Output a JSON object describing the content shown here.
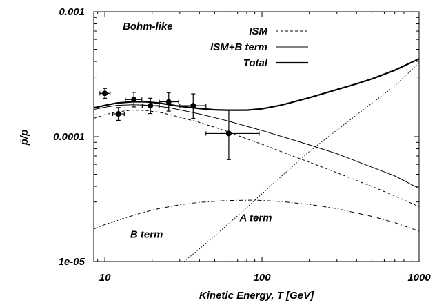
{
  "chart_data": {
    "type": "line",
    "xlabel": "Kinetic Energy, T [GeV]",
    "ylabel": "p̄/p",
    "xscale": "log",
    "yscale": "log",
    "xlim": [
      8.5,
      1000
    ],
    "ylim": [
      1e-05,
      0.001
    ],
    "x_ticks": [
      {
        "value": 10,
        "label": "10"
      },
      {
        "value": 100,
        "label": "100"
      },
      {
        "value": 1000,
        "label": "1000"
      }
    ],
    "y_ticks": [
      {
        "value": 1e-05,
        "label": "1e-05"
      },
      {
        "value": 0.0001,
        "label": "0.0001"
      },
      {
        "value": 0.001,
        "label": "0.001"
      }
    ],
    "grid": false,
    "legend_position": "top-right",
    "annotations": [
      {
        "text": "Bohm-like",
        "x": 13,
        "y": 0.00072
      },
      {
        "text": "B term",
        "x": 14.5,
        "y": 1.55e-05
      },
      {
        "text": "A term",
        "x": 72,
        "y": 2.1e-05
      }
    ],
    "series": [
      {
        "name": "ISM",
        "style": "dashed",
        "color": "#000000",
        "legend": true,
        "points": [
          [
            8.5,
            0.00014
          ],
          [
            10,
            0.00015
          ],
          [
            12,
            0.000158
          ],
          [
            15,
            0.000163
          ],
          [
            18,
            0.000162
          ],
          [
            22,
            0.000157
          ],
          [
            26,
            0.00015
          ],
          [
            30,
            0.000143
          ],
          [
            40,
            0.00013
          ],
          [
            50,
            0.000119
          ],
          [
            60,
            0.00011
          ],
          [
            80,
            9.6e-05
          ],
          [
            100,
            8.7e-05
          ],
          [
            150,
            7.15e-05
          ],
          [
            200,
            6.25e-05
          ],
          [
            300,
            5.15e-05
          ],
          [
            400,
            4.45e-05
          ],
          [
            500,
            4e-05
          ],
          [
            700,
            3.35e-05
          ],
          [
            1000,
            2.75e-05
          ]
        ]
      },
      {
        "name": "ISM+B term",
        "style": "solid-thin",
        "color": "#000000",
        "legend": true,
        "points": [
          [
            8.5,
            0.000165
          ],
          [
            10,
            0.000172
          ],
          [
            12,
            0.000178
          ],
          [
            15,
            0.00018
          ],
          [
            18,
            0.000179
          ],
          [
            22,
            0.000175
          ],
          [
            26,
            0.00017
          ],
          [
            30,
            0.000164
          ],
          [
            40,
            0.000152
          ],
          [
            50,
            0.000142
          ],
          [
            60,
            0.000134
          ],
          [
            80,
            0.000121
          ],
          [
            100,
            0.000112
          ],
          [
            150,
            9.6e-05
          ],
          [
            200,
            8.6e-05
          ],
          [
            300,
            7.3e-05
          ],
          [
            400,
            6.35e-05
          ],
          [
            500,
            5.7e-05
          ],
          [
            700,
            4.85e-05
          ],
          [
            1000,
            3.85e-05
          ]
        ]
      },
      {
        "name": "Total",
        "style": "solid-thick",
        "color": "#000000",
        "legend": true,
        "points": [
          [
            8.5,
            0.00017
          ],
          [
            10,
            0.000178
          ],
          [
            12,
            0.000186
          ],
          [
            15,
            0.00019
          ],
          [
            18,
            0.00019
          ],
          [
            22,
            0.000186
          ],
          [
            26,
            0.00018
          ],
          [
            30,
            0.000175
          ],
          [
            40,
            0.000168
          ],
          [
            50,
            0.000164
          ],
          [
            60,
            0.000163
          ],
          [
            70,
            0.000163
          ],
          [
            80,
            0.000163
          ],
          [
            100,
            0.000167
          ],
          [
            130,
            0.000178
          ],
          [
            150,
            0.000186
          ],
          [
            200,
            0.000205
          ],
          [
            300,
            0.000238
          ],
          [
            400,
            0.000265
          ],
          [
            500,
            0.00029
          ],
          [
            700,
            0.00034
          ],
          [
            1000,
            0.00042
          ]
        ]
      },
      {
        "name": "B term",
        "style": "dash-dot",
        "color": "#000000",
        "legend": false,
        "points": [
          [
            8.5,
            1.82e-05
          ],
          [
            10,
            1.98e-05
          ],
          [
            13,
            2.2e-05
          ],
          [
            17,
            2.45e-05
          ],
          [
            22,
            2.65e-05
          ],
          [
            30,
            2.85e-05
          ],
          [
            40,
            2.98e-05
          ],
          [
            60,
            3.08e-05
          ],
          [
            90,
            3.1e-05
          ],
          [
            130,
            3.03e-05
          ],
          [
            200,
            2.87e-05
          ],
          [
            300,
            2.65e-05
          ],
          [
            500,
            2.3e-05
          ],
          [
            700,
            2.05e-05
          ],
          [
            1000,
            1.75e-05
          ]
        ]
      },
      {
        "name": "A term",
        "style": "dotted",
        "color": "#000000",
        "legend": false,
        "points": [
          [
            32,
            1e-05
          ],
          [
            50,
            1.6e-05
          ],
          [
            80,
            2.7e-05
          ],
          [
            120,
            4.3e-05
          ],
          [
            200,
            7.6e-05
          ],
          [
            300,
            0.000113
          ],
          [
            500,
            0.000185
          ],
          [
            700,
            0.000255
          ],
          [
            1000,
            0.00039
          ]
        ]
      }
    ],
    "data_points": {
      "name": "measurements",
      "marker": "filled-circle",
      "points": [
        {
          "x": 10,
          "y": 0.000222,
          "xerr_low": 9.3,
          "xerr_high": 10.8,
          "yerr_low": 0.000203,
          "yerr_high": 0.000243
        },
        {
          "x": 12.2,
          "y": 0.000152,
          "xerr_low": 11.2,
          "xerr_high": 13.3,
          "yerr_low": 0.000135,
          "yerr_high": 0.000171
        },
        {
          "x": 15.3,
          "y": 0.000198,
          "xerr_low": 13.5,
          "xerr_high": 17.2,
          "yerr_low": 0.000173,
          "yerr_high": 0.000226
        },
        {
          "x": 19.5,
          "y": 0.000177,
          "xerr_low": 17.3,
          "xerr_high": 22.2,
          "yerr_low": 0.000153,
          "yerr_high": 0.000203
        },
        {
          "x": 25.5,
          "y": 0.00019,
          "xerr_low": 22.2,
          "xerr_high": 29.5,
          "yerr_low": 0.00016,
          "yerr_high": 0.000225
        },
        {
          "x": 36.5,
          "y": 0.000177,
          "xerr_low": 30,
          "xerr_high": 44,
          "yerr_low": 0.00014,
          "yerr_high": 0.00022
        },
        {
          "x": 61.5,
          "y": 0.000106,
          "xerr_low": 44,
          "xerr_high": 96,
          "yerr_low": 6.55e-05,
          "yerr_high": 0.000163
        }
      ]
    }
  }
}
